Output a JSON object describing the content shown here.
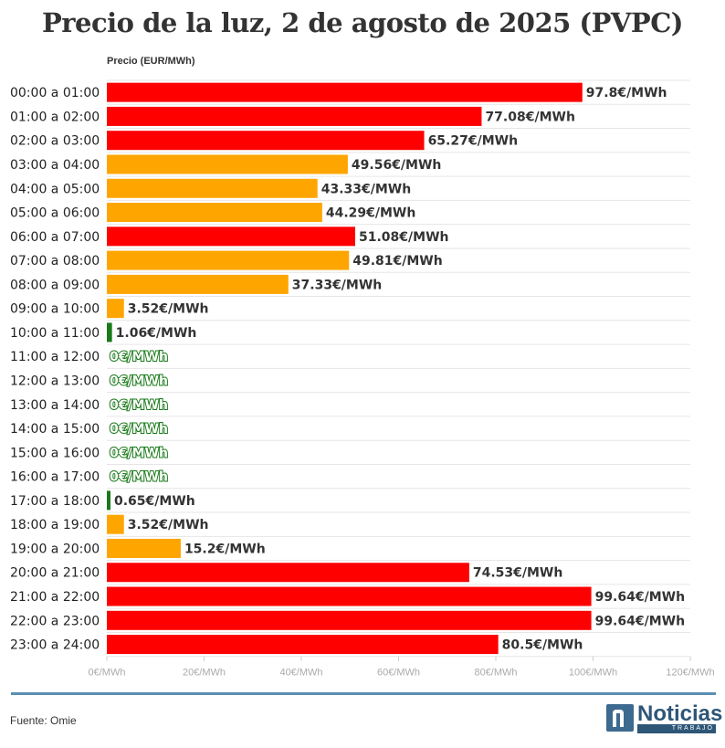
{
  "chart_data": {
    "type": "bar",
    "orientation": "horizontal",
    "title": "Precio de la luz, 2 de agosto de 2025 (PVPC)",
    "ylabel": "Precio (EUR/MWh)",
    "xlim": [
      0,
      120
    ],
    "x_ticks": [
      0,
      20,
      40,
      60,
      80,
      100,
      120
    ],
    "x_tick_labels": [
      "0€/MWh",
      "20€/MWh",
      "40€/MWh",
      "60€/MWh",
      "80€/MWh",
      "100€/MWh",
      "120€/MWh"
    ],
    "grid": true,
    "categories": [
      "00:00 a 01:00",
      "01:00 a 02:00",
      "02:00 a 03:00",
      "03:00 a 04:00",
      "04:00 a 05:00",
      "05:00 a 06:00",
      "06:00 a 07:00",
      "07:00 a 08:00",
      "08:00 a 09:00",
      "09:00 a 10:00",
      "10:00 a 11:00",
      "11:00 a 12:00",
      "12:00 a 13:00",
      "13:00 a 14:00",
      "14:00 a 15:00",
      "15:00 a 16:00",
      "16:00 a 17:00",
      "17:00 a 18:00",
      "18:00 a 19:00",
      "19:00 a 20:00",
      "20:00 a 21:00",
      "21:00 a 22:00",
      "22:00 a 23:00",
      "23:00 a 24:00"
    ],
    "values": [
      97.8,
      77.08,
      65.27,
      49.56,
      43.33,
      44.29,
      51.08,
      49.81,
      37.33,
      3.52,
      1.06,
      0,
      0,
      0,
      0,
      0,
      0,
      0.65,
      3.52,
      15.2,
      74.53,
      99.64,
      99.64,
      80.5
    ],
    "value_labels": [
      "97.8€/MWh",
      "77.08€/MWh",
      "65.27€/MWh",
      "49.56€/MWh",
      "43.33€/MWh",
      "44.29€/MWh",
      "51.08€/MWh",
      "49.81€/MWh",
      "37.33€/MWh",
      "3.52€/MWh",
      "1.06€/MWh",
      "0€/MWh",
      "0€/MWh",
      "0€/MWh",
      "0€/MWh",
      "0€/MWh",
      "0€/MWh",
      "0.65€/MWh",
      "3.52€/MWh",
      "15.2€/MWh",
      "74.53€/MWh",
      "99.64€/MWh",
      "99.64€/MWh",
      "80.5€/MWh"
    ],
    "bar_levels": [
      "high",
      "high",
      "high",
      "mid",
      "mid",
      "mid",
      "high",
      "mid",
      "mid",
      "mid",
      "low",
      "low",
      "low",
      "low",
      "low",
      "low",
      "low",
      "low",
      "mid",
      "mid",
      "high",
      "high",
      "high",
      "high"
    ]
  },
  "colors": {
    "high": "#ff0000",
    "mid": "#ffa500",
    "low": "#1a7a1a",
    "grid": "#e6e6e6",
    "axis_text": "#aaaaaa",
    "label_text": "#333333"
  },
  "footer": {
    "source": "Fuente: Omie"
  },
  "logo": {
    "word": "Noticias",
    "sub": "TRABAJO"
  }
}
